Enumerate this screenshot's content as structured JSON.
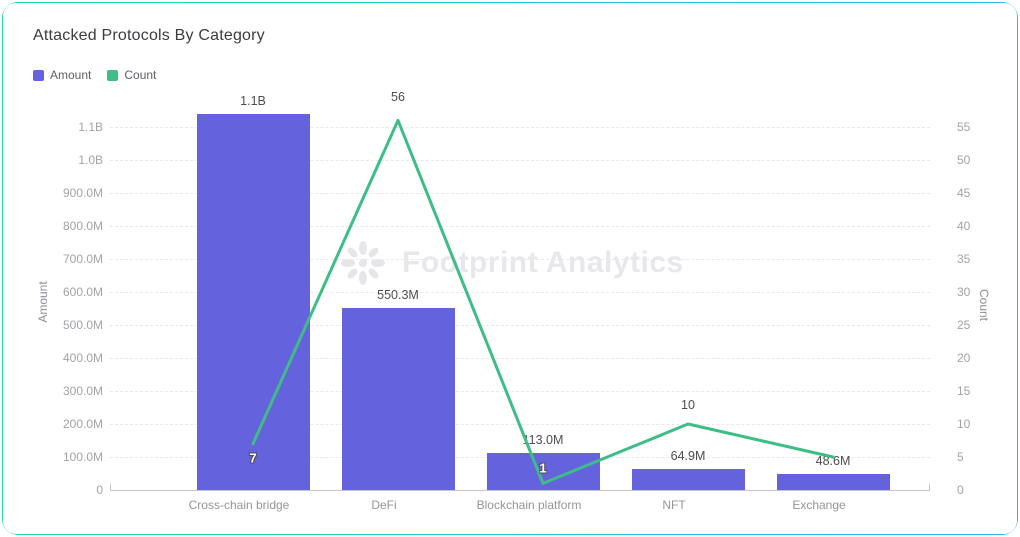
{
  "card": {
    "title": "Attacked Protocols By Category",
    "watermark": "Footprint Analytics"
  },
  "legend": [
    {
      "label": "Amount",
      "color": "#6562dd"
    },
    {
      "label": "Count",
      "color": "#3ebd86"
    }
  ],
  "chart_data": {
    "type": "bar",
    "subtype": "dual-axis bar + line",
    "title": "Attacked Protocols By Category",
    "categories": [
      "Cross-chain bridge",
      "DeFi",
      "Blockchain platform",
      "NFT",
      "Exchange"
    ],
    "series": [
      {
        "name": "Amount",
        "type": "bar",
        "axis": "left",
        "color": "#6562dd",
        "values_millions": [
          1140,
          550.3,
          113.0,
          64.9,
          48.6
        ],
        "labels": [
          "1.1B",
          "550.3M",
          "113.0M",
          "64.9M",
          "48.6M"
        ]
      },
      {
        "name": "Count",
        "type": "line",
        "axis": "right",
        "color": "#3ebd86",
        "values": [
          7,
          56,
          1,
          10,
          5
        ],
        "labels": [
          "7",
          "56",
          "1",
          "10",
          ""
        ]
      }
    ],
    "left_axis": {
      "title": "Amount",
      "ticks": [
        "1.1B",
        "1.0B",
        "900.0M",
        "800.0M",
        "700.0M",
        "600.0M",
        "500.0M",
        "400.0M",
        "300.0M",
        "200.0M",
        "100.0M",
        "0"
      ],
      "max_millions": 1100,
      "min": 0
    },
    "right_axis": {
      "title": "Count",
      "ticks": [
        "55",
        "50",
        "45",
        "40",
        "35",
        "30",
        "25",
        "20",
        "15",
        "10",
        "5",
        "0"
      ],
      "max": 55,
      "min": 0
    },
    "grid": "dashed horizontal gridlines",
    "legend_position": "top-left"
  }
}
